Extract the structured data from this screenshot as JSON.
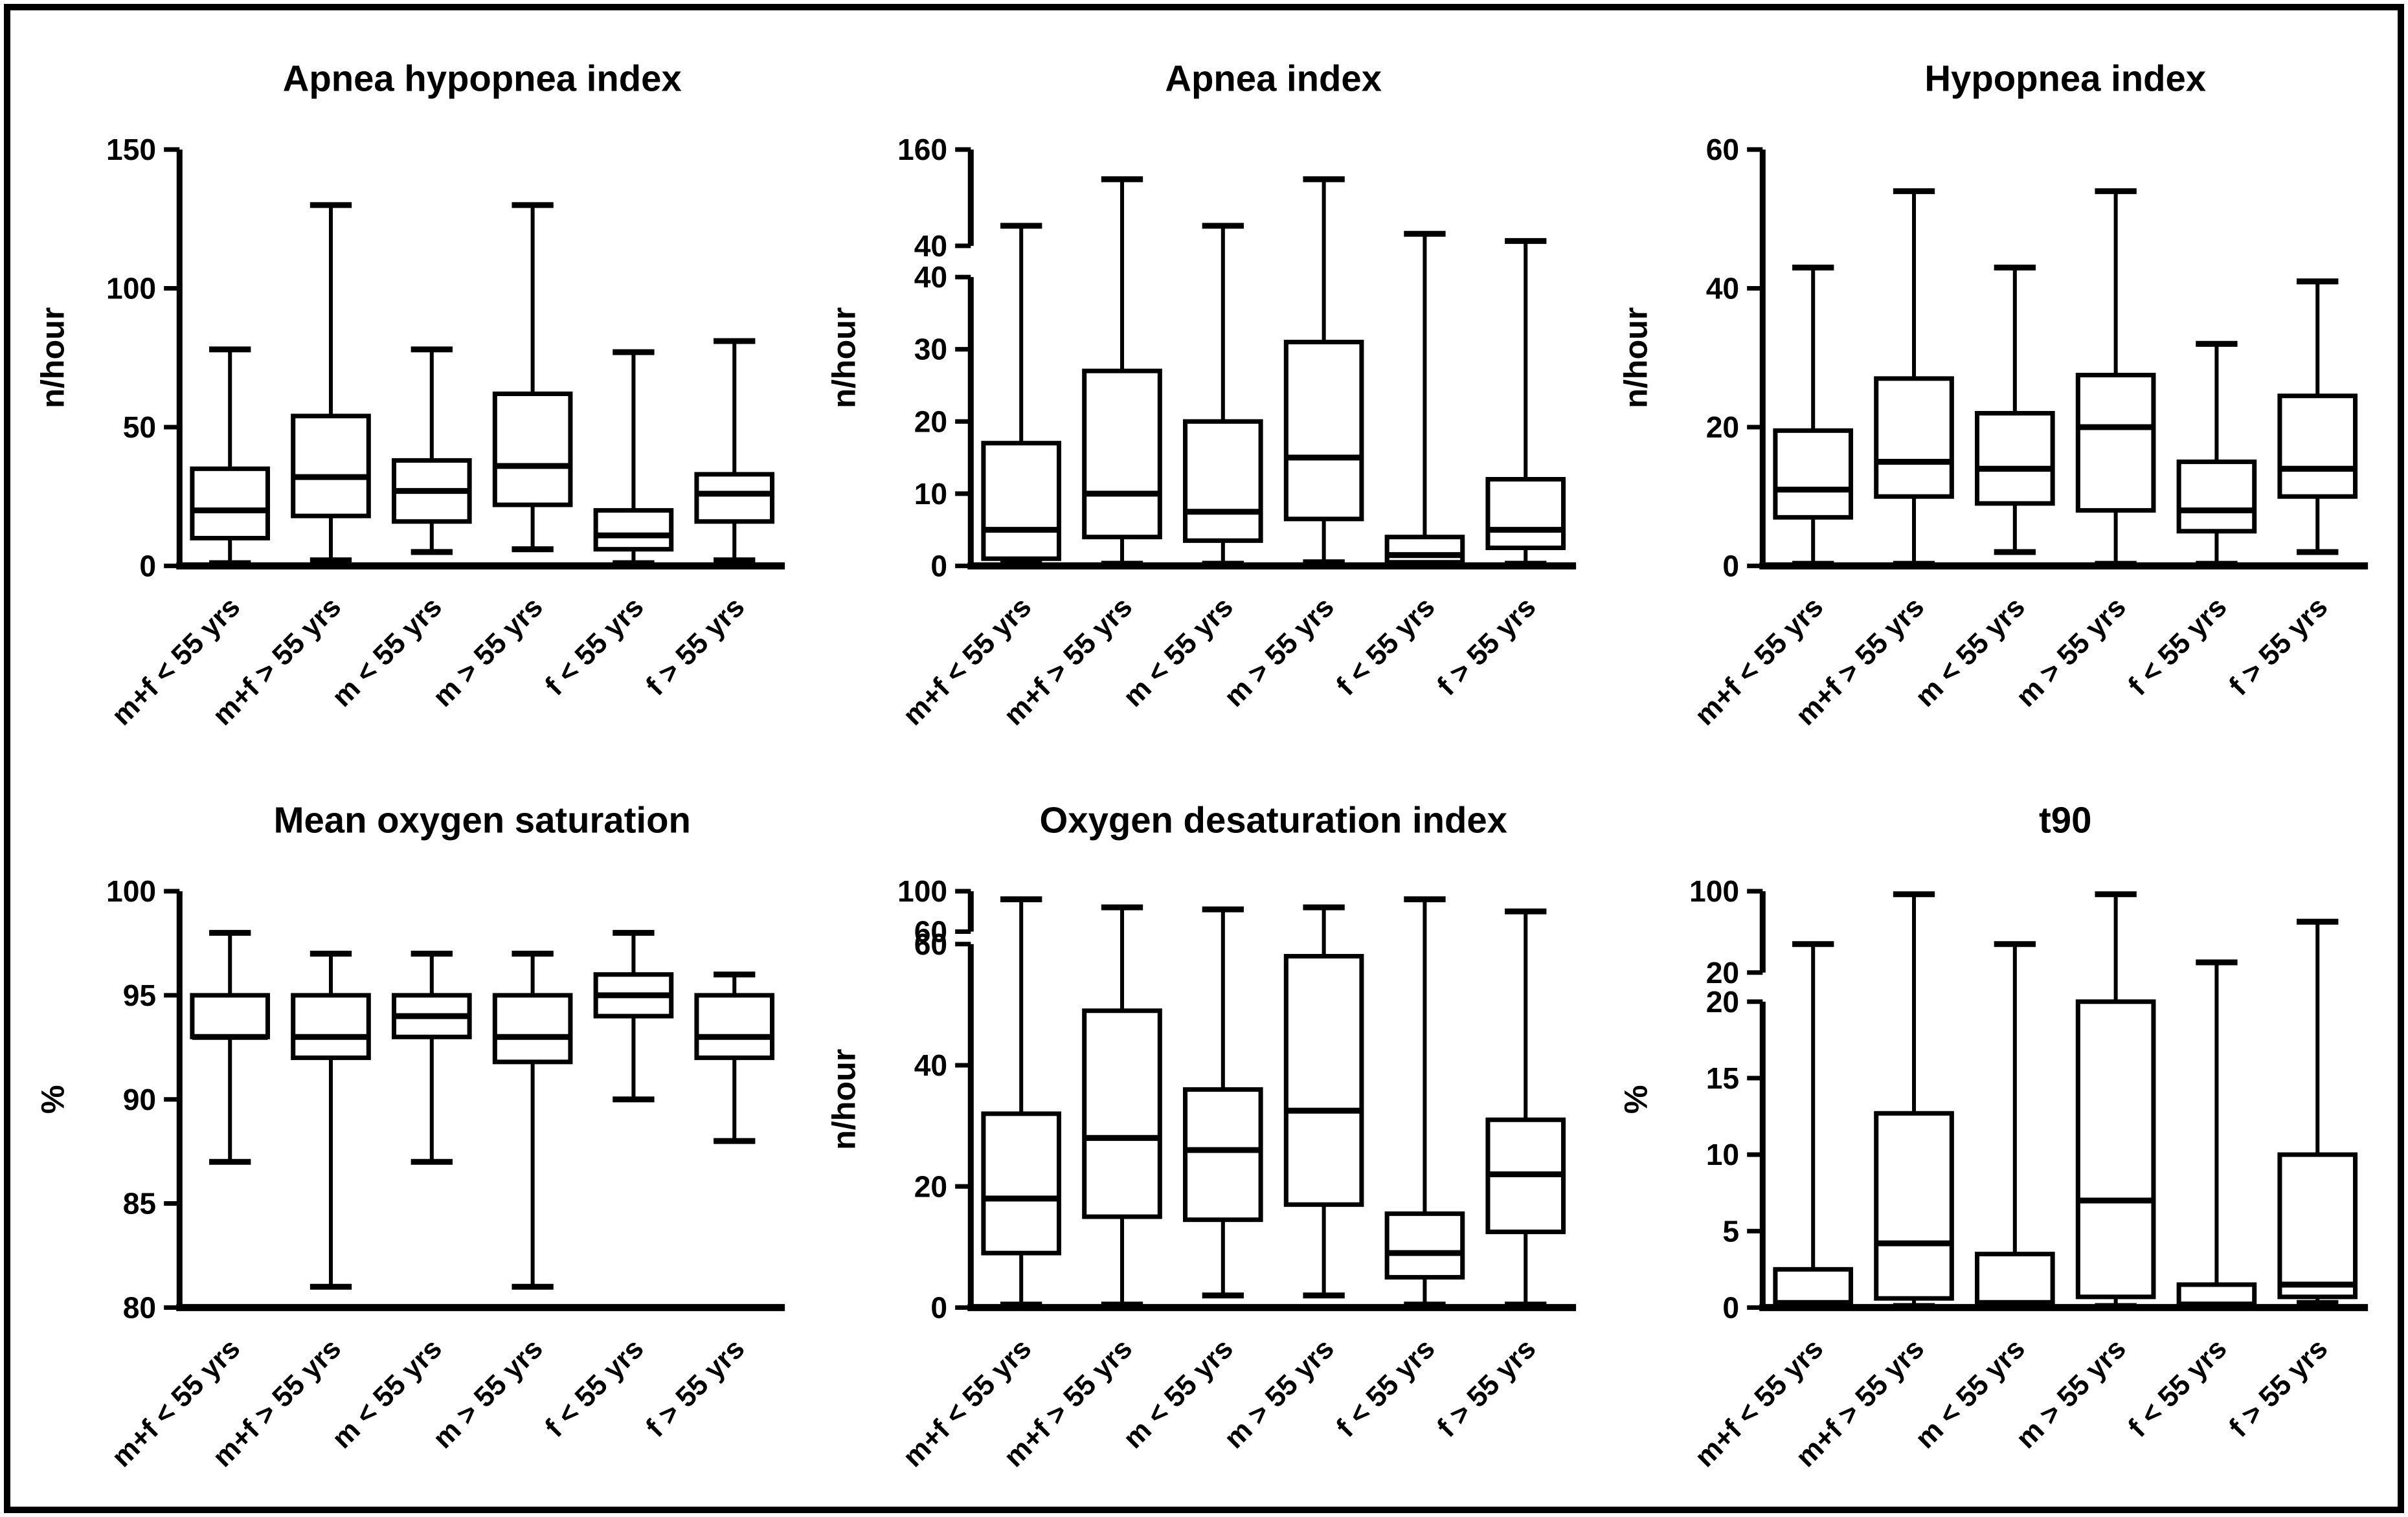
{
  "figure": {
    "background_color": "#ffffff",
    "border_color": "#000000",
    "ink_color": "#000000"
  },
  "chart_data": {
    "type": "boxplot",
    "layout": "2 rows x 3 columns",
    "grid": "off",
    "categories": [
      "m+f < 55 yrs",
      "m+f > 55 yrs",
      "m < 55 yrs",
      "m > 55 yrs",
      "f < 55 yrs",
      "f > 55 yrs"
    ],
    "charts": [
      {
        "title": "Apnea hypopnea index",
        "ylabel": "n/hour",
        "axis": {
          "gap_frac": 0,
          "segments": [
            {
              "from": 0,
              "to": 150,
              "frac": 1,
              "ticks": [
                0,
                50,
                100,
                150
              ]
            }
          ]
        },
        "boxes": [
          {
            "min": 1,
            "q1": 10,
            "median": 20,
            "q3": 35,
            "max": 78
          },
          {
            "min": 2,
            "q1": 18,
            "median": 32,
            "q3": 54,
            "max": 130
          },
          {
            "min": 5,
            "q1": 16,
            "median": 27,
            "q3": 38,
            "max": 78
          },
          {
            "min": 6,
            "q1": 22,
            "median": 36,
            "q3": 62,
            "max": 130
          },
          {
            "min": 1,
            "q1": 6,
            "median": 11,
            "q3": 20,
            "max": 77
          },
          {
            "min": 2,
            "q1": 16,
            "median": 26,
            "q3": 33,
            "max": 81
          }
        ]
      },
      {
        "title": "Apnea index",
        "ylabel": "n/hour",
        "axis": {
          "gap_frac": 0.075,
          "segments": [
            {
              "from": 0,
              "to": 40,
              "frac": 0.75,
              "ticks": [
                0,
                10,
                20,
                30,
                40
              ]
            },
            {
              "from": 40,
              "to": 160,
              "frac": 0.25,
              "ticks": [
                40,
                160
              ]
            }
          ]
        },
        "boxes": [
          {
            "min": 0.3,
            "q1": 1,
            "median": 5,
            "q3": 17,
            "max": 65
          },
          {
            "min": 0.3,
            "q1": 4,
            "median": 10,
            "q3": 27,
            "max": 123
          },
          {
            "min": 0.3,
            "q1": 3.5,
            "median": 7.5,
            "q3": 20,
            "max": 65
          },
          {
            "min": 0.5,
            "q1": 6.5,
            "median": 15,
            "q3": 31,
            "max": 123
          },
          {
            "min": 0.2,
            "q1": 0.5,
            "median": 1.5,
            "q3": 4,
            "max": 55
          },
          {
            "min": 0.3,
            "q1": 2.5,
            "median": 5,
            "q3": 12,
            "max": 46
          }
        ]
      },
      {
        "title": "Hypopnea index",
        "ylabel": "n/hour",
        "axis": {
          "gap_frac": 0,
          "segments": [
            {
              "from": 0,
              "to": 60,
              "frac": 1,
              "ticks": [
                0,
                20,
                40,
                60
              ]
            }
          ]
        },
        "boxes": [
          {
            "min": 0.3,
            "q1": 7,
            "median": 11,
            "q3": 19.5,
            "max": 43
          },
          {
            "min": 0.3,
            "q1": 10,
            "median": 15,
            "q3": 27,
            "max": 54
          },
          {
            "min": 2,
            "q1": 9,
            "median": 14,
            "q3": 22,
            "max": 43
          },
          {
            "min": 0.3,
            "q1": 8,
            "median": 20,
            "q3": 27.5,
            "max": 54
          },
          {
            "min": 0.3,
            "q1": 5,
            "median": 8,
            "q3": 15,
            "max": 32
          },
          {
            "min": 2,
            "q1": 10,
            "median": 14,
            "q3": 24.5,
            "max": 41
          }
        ]
      },
      {
        "title": "Mean oxygen saturation",
        "ylabel": "%",
        "axis": {
          "gap_frac": 0,
          "segments": [
            {
              "from": 80,
              "to": 100,
              "frac": 1,
              "ticks": [
                80,
                85,
                90,
                95,
                100
              ]
            }
          ]
        },
        "boxes": [
          {
            "min": 87,
            "q1": 93,
            "median": 93,
            "q3": 95,
            "max": 98
          },
          {
            "min": 81,
            "q1": 92,
            "median": 93,
            "q3": 95,
            "max": 97
          },
          {
            "min": 87,
            "q1": 93,
            "median": 94,
            "q3": 95,
            "max": 97
          },
          {
            "min": 81,
            "q1": 91.8,
            "median": 93,
            "q3": 95,
            "max": 97
          },
          {
            "min": 90,
            "q1": 94,
            "median": 95,
            "q3": 96,
            "max": 98
          },
          {
            "min": 88,
            "q1": 92,
            "median": 93,
            "q3": 95,
            "max": 96
          }
        ]
      },
      {
        "title": "Oxygen desaturation index",
        "ylabel": "n/hour",
        "axis": {
          "gap_frac": 0.03,
          "segments": [
            {
              "from": 0,
              "to": 60,
              "frac": 0.9,
              "ticks": [
                0,
                20,
                40,
                60
              ]
            },
            {
              "from": 60,
              "to": 100,
              "frac": 0.1,
              "ticks": [
                60,
                100
              ]
            }
          ]
        },
        "boxes": [
          {
            "min": 0.5,
            "q1": 9,
            "median": 18,
            "q3": 32,
            "max": 92
          },
          {
            "min": 0.5,
            "q1": 15,
            "median": 28,
            "q3": 49,
            "max": 84
          },
          {
            "min": 2,
            "q1": 14.5,
            "median": 26,
            "q3": 36,
            "max": 82
          },
          {
            "min": 2,
            "q1": 17,
            "median": 32.5,
            "q3": 58,
            "max": 84
          },
          {
            "min": 0.5,
            "q1": 5,
            "median": 9,
            "q3": 15.5,
            "max": 92
          },
          {
            "min": 0.5,
            "q1": 12.5,
            "median": 22,
            "q3": 31,
            "max": 80
          }
        ]
      },
      {
        "title": "t90",
        "ylabel": "%",
        "axis": {
          "gap_frac": 0.07,
          "segments": [
            {
              "from": 0,
              "to": 20,
              "frac": 0.79,
              "ticks": [
                0,
                5,
                10,
                15,
                20
              ]
            },
            {
              "from": 20,
              "to": 100,
              "frac": 0.21,
              "ticks": [
                20,
                100
              ]
            }
          ]
        },
        "boxes": [
          {
            "min": 0.05,
            "q1": 0.15,
            "median": 0.3,
            "q3": 2.5,
            "max": 48
          },
          {
            "min": 0.1,
            "q1": 0.6,
            "median": 4.2,
            "q3": 12.7,
            "max": 97
          },
          {
            "min": 0.05,
            "q1": 0.15,
            "median": 0.3,
            "q3": 3.5,
            "max": 48
          },
          {
            "min": 0.1,
            "q1": 0.7,
            "median": 7,
            "q3": 20,
            "max": 97
          },
          {
            "min": 0.05,
            "q1": 0.1,
            "median": 0.2,
            "q3": 1.5,
            "max": 30
          },
          {
            "min": 0.3,
            "q1": 0.7,
            "median": 1.5,
            "q3": 10,
            "max": 70
          }
        ]
      }
    ]
  }
}
